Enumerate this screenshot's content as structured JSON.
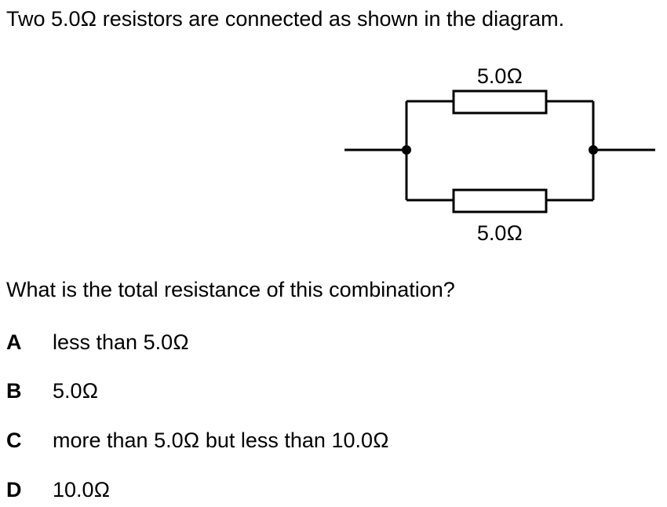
{
  "intro": "Two 5.0Ω resistors are connected as shown in the diagram.",
  "diagram": {
    "top_resistor_label": "5.0Ω",
    "bottom_resistor_label": "5.0Ω",
    "line_color": "#000000"
  },
  "question": "What is the total resistance of this combination?",
  "options": [
    {
      "letter": "A",
      "text": "less than 5.0Ω"
    },
    {
      "letter": "B",
      "text": "5.0Ω"
    },
    {
      "letter": "C",
      "text": "more than 5.0Ω but less than 10.0Ω"
    },
    {
      "letter": "D",
      "text": "10.0Ω"
    }
  ]
}
